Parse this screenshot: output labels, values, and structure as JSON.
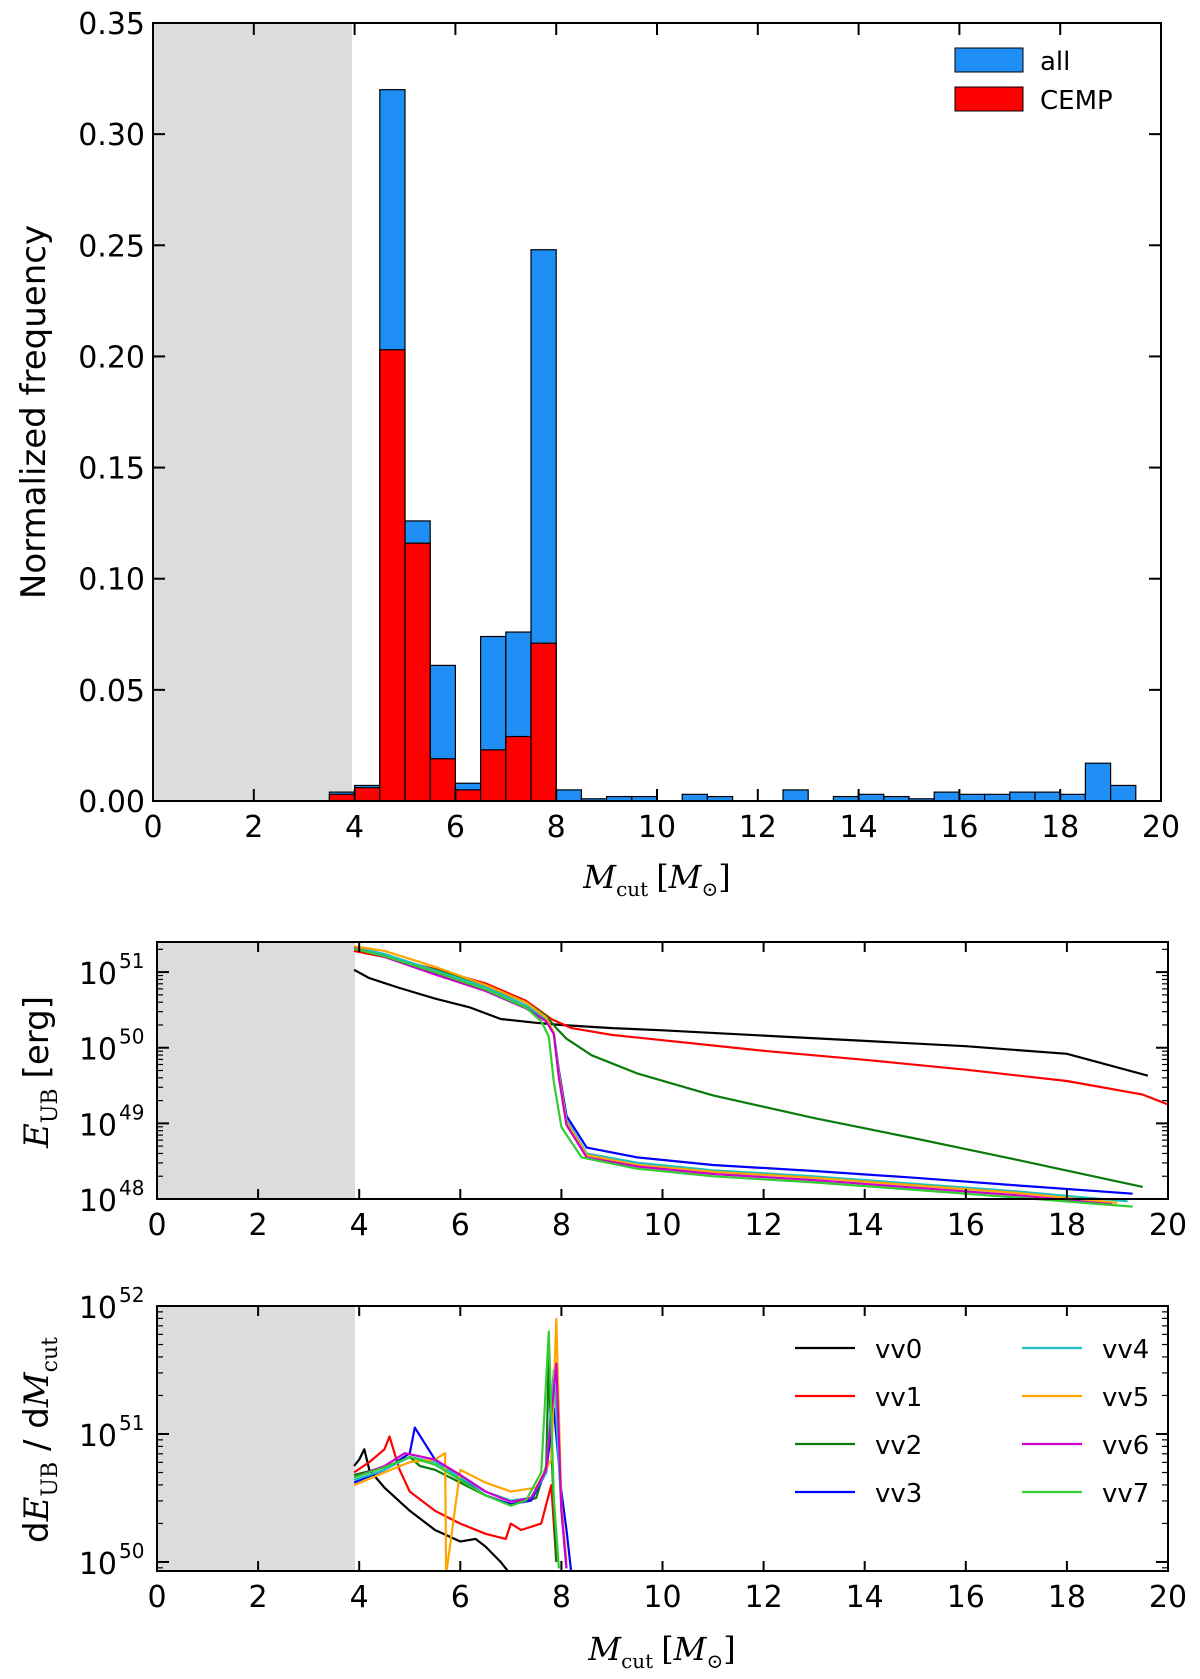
{
  "chart_data": [
    {
      "id": "hist",
      "type": "bar",
      "title": "",
      "xlabel": "M_cut [M_⊙]",
      "xlabel_parts": {
        "var": "M",
        "sub": "cut",
        "open": "[",
        "unit": "M",
        "unit_sub": "⊙",
        "close": "]"
      },
      "ylabel": "Normalized frequency",
      "xlim": [
        0,
        20
      ],
      "ylim": [
        0,
        0.35
      ],
      "xticks": [
        "0",
        "2",
        "4",
        "6",
        "8",
        "10",
        "12",
        "14",
        "16",
        "18",
        "20"
      ],
      "yticks": [
        "0.00",
        "0.05",
        "0.10",
        "0.15",
        "0.20",
        "0.25",
        "0.30",
        "0.35"
      ],
      "shaded_region": [
        0,
        3.9
      ],
      "bin_width": 0.5,
      "bin_starts": [
        3.5,
        4.0,
        4.5,
        5.0,
        5.5,
        6.0,
        6.5,
        7.0,
        7.5,
        8.0,
        8.5,
        9.0,
        9.5,
        10.0,
        10.5,
        11.0,
        11.5,
        12.0,
        12.5,
        13.0,
        13.5,
        14.0,
        14.5,
        15.0,
        15.5,
        16.0,
        16.5,
        17.0,
        17.5,
        18.0,
        18.5,
        19.0
      ],
      "series": [
        {
          "name": "all",
          "color": "#1f8ff5",
          "values": [
            0.004,
            0.007,
            0.32,
            0.126,
            0.061,
            0.008,
            0.074,
            0.076,
            0.248,
            0.005,
            0.001,
            0.002,
            0.002,
            0,
            0.003,
            0.002,
            0,
            0,
            0.005,
            0,
            0.002,
            0.003,
            0.002,
            0.001,
            0.004,
            0.003,
            0.003,
            0.004,
            0.004,
            0.003,
            0.017,
            0.007
          ]
        },
        {
          "name": "CEMP",
          "color": "#ff0000",
          "values": [
            0.003,
            0.006,
            0.203,
            0.116,
            0.019,
            0.005,
            0.023,
            0.029,
            0.071,
            0,
            0,
            0,
            0,
            0,
            0,
            0,
            0,
            0,
            0,
            0,
            0,
            0,
            0,
            0,
            0,
            0,
            0,
            0,
            0,
            0,
            0,
            0
          ]
        }
      ]
    },
    {
      "id": "energy",
      "type": "line",
      "ylabel": "E_UB [erg]",
      "ylabel_parts": {
        "var": "E",
        "sub": "UB",
        "unit": "[erg]"
      },
      "xlim": [
        0,
        20
      ],
      "ylim": [
        1e+48,
        2.5e+51
      ],
      "yscale": "log",
      "xticks": [
        "0",
        "2",
        "4",
        "6",
        "8",
        "10",
        "12",
        "14",
        "16",
        "18",
        "20"
      ],
      "yticks": [
        {
          "base": "10",
          "exp": "48"
        },
        {
          "base": "10",
          "exp": "49"
        },
        {
          "base": "10",
          "exp": "50"
        },
        {
          "base": "10",
          "exp": "51"
        }
      ],
      "shaded_region": [
        0,
        3.9
      ],
      "series": [
        {
          "name": "vv0",
          "color": "#000000",
          "x": [
            3.9,
            4.2,
            4.8,
            5.5,
            6.2,
            6.8,
            7.5,
            8.0,
            9.0,
            10,
            12,
            14,
            16,
            18,
            19.6
          ],
          "y_log10": [
            51.03,
            50.92,
            50.79,
            50.65,
            50.53,
            50.38,
            50.33,
            50.3,
            50.26,
            50.23,
            50.16,
            50.09,
            50.02,
            49.92,
            49.63
          ]
        },
        {
          "name": "vv1",
          "color": "#ff0000",
          "x": [
            3.9,
            4.5,
            5.5,
            6.5,
            7.3,
            7.8,
            8.2,
            9,
            10,
            12,
            14,
            16,
            18,
            19.5,
            20
          ],
          "y_log10": [
            51.28,
            51.2,
            51.04,
            50.85,
            50.62,
            50.38,
            50.26,
            50.17,
            50.1,
            49.96,
            49.84,
            49.71,
            49.56,
            49.38,
            49.25
          ]
        },
        {
          "name": "vv2",
          "color": "#0a7a0a",
          "x": [
            3.9,
            4.5,
            5.5,
            6.5,
            7.3,
            7.7,
            7.9,
            8.1,
            8.6,
            9.5,
            11,
            13,
            15,
            17,
            19.5
          ],
          "y_log10": [
            51.33,
            51.22,
            51.03,
            50.82,
            50.6,
            50.42,
            50.26,
            50.12,
            49.9,
            49.66,
            49.37,
            49.07,
            48.8,
            48.52,
            48.16
          ]
        },
        {
          "name": "vv3",
          "color": "#0000ff",
          "x": [
            3.9,
            4.5,
            5.5,
            6.5,
            7.3,
            7.7,
            7.85,
            7.95,
            8.1,
            8.5,
            9.5,
            11,
            13,
            15,
            17,
            19.3
          ],
          "y_log10": [
            51.32,
            51.22,
            50.98,
            50.76,
            50.53,
            50.36,
            50.2,
            49.7,
            49.1,
            48.68,
            48.55,
            48.45,
            48.37,
            48.28,
            48.18,
            48.07
          ]
        },
        {
          "name": "vv4",
          "color": "#1fc0c0",
          "x": [
            3.9,
            4.5,
            5.5,
            6.5,
            7.3,
            7.7,
            7.85,
            7.95,
            8.1,
            8.5,
            9.5,
            11,
            13,
            15,
            17,
            19.2
          ],
          "y_log10": [
            51.33,
            51.24,
            51.02,
            50.8,
            50.56,
            50.38,
            50.2,
            49.65,
            49.05,
            48.6,
            48.48,
            48.38,
            48.3,
            48.2,
            48.1,
            47.97
          ]
        },
        {
          "name": "vv5",
          "color": "#ffa500",
          "x": [
            3.9,
            4.5,
            5.5,
            6.5,
            7.3,
            7.7,
            7.85,
            7.95,
            8.1,
            8.5,
            9.5,
            11,
            13,
            15,
            17,
            19.0
          ],
          "y_log10": [
            51.34,
            51.28,
            51.07,
            50.83,
            50.6,
            50.4,
            50.2,
            49.65,
            49.02,
            48.58,
            48.45,
            48.36,
            48.28,
            48.18,
            48.08,
            47.95
          ]
        },
        {
          "name": "vv6",
          "color": "#cc00cc",
          "x": [
            3.9,
            4.5,
            5.5,
            6.5,
            7.3,
            7.7,
            7.85,
            7.95,
            8.1,
            8.5,
            9.5,
            11,
            13,
            15,
            17,
            18.9
          ],
          "y_log10": [
            51.32,
            51.2,
            50.97,
            50.75,
            50.52,
            50.35,
            50.18,
            49.6,
            48.98,
            48.55,
            48.43,
            48.33,
            48.25,
            48.15,
            48.05,
            47.93
          ]
        },
        {
          "name": "vv7",
          "color": "#33cc33",
          "x": [
            3.9,
            4.5,
            5.5,
            6.5,
            7.3,
            7.6,
            7.75,
            7.85,
            8.0,
            8.4,
            9.5,
            11,
            13,
            15,
            17,
            19.3
          ],
          "y_log10": [
            51.31,
            51.21,
            51.0,
            50.77,
            50.53,
            50.35,
            50.15,
            49.55,
            48.95,
            48.55,
            48.4,
            48.3,
            48.22,
            48.12,
            48.02,
            47.9
          ]
        }
      ]
    },
    {
      "id": "deriv",
      "type": "line",
      "xlabel": "M_cut [M_⊙]",
      "xlabel_parts": {
        "var": "M",
        "sub": "cut",
        "open": "[",
        "unit": "M",
        "unit_sub": "⊙",
        "close": "]"
      },
      "ylabel": "dE_UB / dM_cut",
      "ylabel_parts": {
        "d1": "d",
        "var": "E",
        "sub": "UB",
        "slash": " / d",
        "var2": "M",
        "sub2": "cut"
      },
      "xlim": [
        0,
        20
      ],
      "ylim": [
        8.5e+49,
        1e+52
      ],
      "yscale": "log",
      "xticks": [
        "0",
        "2",
        "4",
        "6",
        "8",
        "10",
        "12",
        "14",
        "16",
        "18",
        "20"
      ],
      "yticks": [
        {
          "base": "10",
          "exp": "50"
        },
        {
          "base": "10",
          "exp": "51"
        },
        {
          "base": "10",
          "exp": "52"
        }
      ],
      "shaded_region": [
        0,
        3.9
      ],
      "legend_entries": [
        "vv0",
        "vv1",
        "vv2",
        "vv3",
        "vv4",
        "vv5",
        "vv6",
        "vv7"
      ],
      "series": [
        {
          "name": "vv0",
          "color": "#000000",
          "x": [
            3.9,
            4.0,
            4.1,
            4.2,
            4.5,
            5.0,
            5.5,
            6.0,
            6.3,
            6.5,
            6.8,
            7.0
          ],
          "y_log10": [
            50.75,
            50.8,
            50.88,
            50.72,
            50.58,
            50.4,
            50.25,
            50.16,
            50.18,
            50.12,
            50.0,
            49.9
          ]
        },
        {
          "name": "vv1",
          "color": "#ff0000",
          "x": [
            3.9,
            4.2,
            4.5,
            4.6,
            4.8,
            5.0,
            5.5,
            6.0,
            6.5,
            6.9,
            7.0,
            7.2,
            7.6,
            7.8,
            7.9
          ],
          "y_log10": [
            50.7,
            50.78,
            50.88,
            50.98,
            50.72,
            50.55,
            50.4,
            50.3,
            50.22,
            50.18,
            50.3,
            50.25,
            50.3,
            50.6,
            50.0
          ]
        },
        {
          "name": "vv2",
          "color": "#0a7a0a",
          "x": [
            3.9,
            4.5,
            5.0,
            5.2,
            5.5,
            6.0,
            6.5,
            7.0,
            7.5,
            7.7,
            7.75,
            7.8,
            7.9
          ],
          "y_log10": [
            50.68,
            50.74,
            50.82,
            50.75,
            50.72,
            50.62,
            50.52,
            50.45,
            50.5,
            50.75,
            51.6,
            50.9,
            50.0
          ]
        },
        {
          "name": "vv3",
          "color": "#0000ff",
          "x": [
            3.9,
            4.5,
            5.0,
            5.1,
            5.5,
            6.0,
            6.5,
            7.0,
            7.4,
            7.7,
            7.85,
            8.0,
            8.1,
            8.2
          ],
          "y_log10": [
            50.62,
            50.72,
            50.85,
            51.05,
            50.8,
            50.65,
            50.52,
            50.45,
            50.48,
            50.7,
            51.2,
            50.55,
            50.25,
            49.9
          ]
        },
        {
          "name": "vv4",
          "color": "#1fc0c0",
          "x": [
            3.9,
            4.5,
            5.0,
            5.5,
            6.0,
            6.5,
            7.0,
            7.4,
            7.7,
            7.85,
            8.0,
            8.1
          ],
          "y_log10": [
            50.64,
            50.72,
            50.82,
            50.78,
            50.66,
            50.55,
            50.48,
            50.5,
            50.7,
            51.5,
            50.4,
            49.95
          ]
        },
        {
          "name": "vv5",
          "color": "#ffa500",
          "x": [
            3.9,
            4.5,
            5.0,
            5.5,
            5.7,
            5.72,
            6.0,
            6.5,
            7.0,
            7.5,
            7.8,
            7.9,
            8.0,
            8.1
          ],
          "y_log10": [
            50.6,
            50.7,
            50.78,
            50.8,
            50.85,
            49.9,
            50.72,
            50.62,
            50.55,
            50.58,
            50.8,
            51.9,
            50.45,
            50.0
          ]
        },
        {
          "name": "vv6",
          "color": "#cc00cc",
          "x": [
            3.9,
            4.5,
            4.9,
            5.5,
            6.0,
            6.5,
            7.0,
            7.4,
            7.7,
            7.9,
            8.0,
            8.1
          ],
          "y_log10": [
            50.66,
            50.75,
            50.85,
            50.8,
            50.68,
            50.55,
            50.47,
            50.5,
            50.72,
            51.55,
            50.4,
            49.95
          ]
        },
        {
          "name": "vv7",
          "color": "#33cc33",
          "x": [
            3.9,
            4.5,
            5.0,
            5.5,
            6.0,
            6.5,
            7.0,
            7.3,
            7.6,
            7.75,
            7.85,
            7.95
          ],
          "y_log10": [
            50.66,
            50.74,
            50.82,
            50.76,
            50.64,
            50.52,
            50.44,
            50.48,
            50.7,
            51.8,
            50.5,
            49.95
          ]
        }
      ]
    }
  ]
}
